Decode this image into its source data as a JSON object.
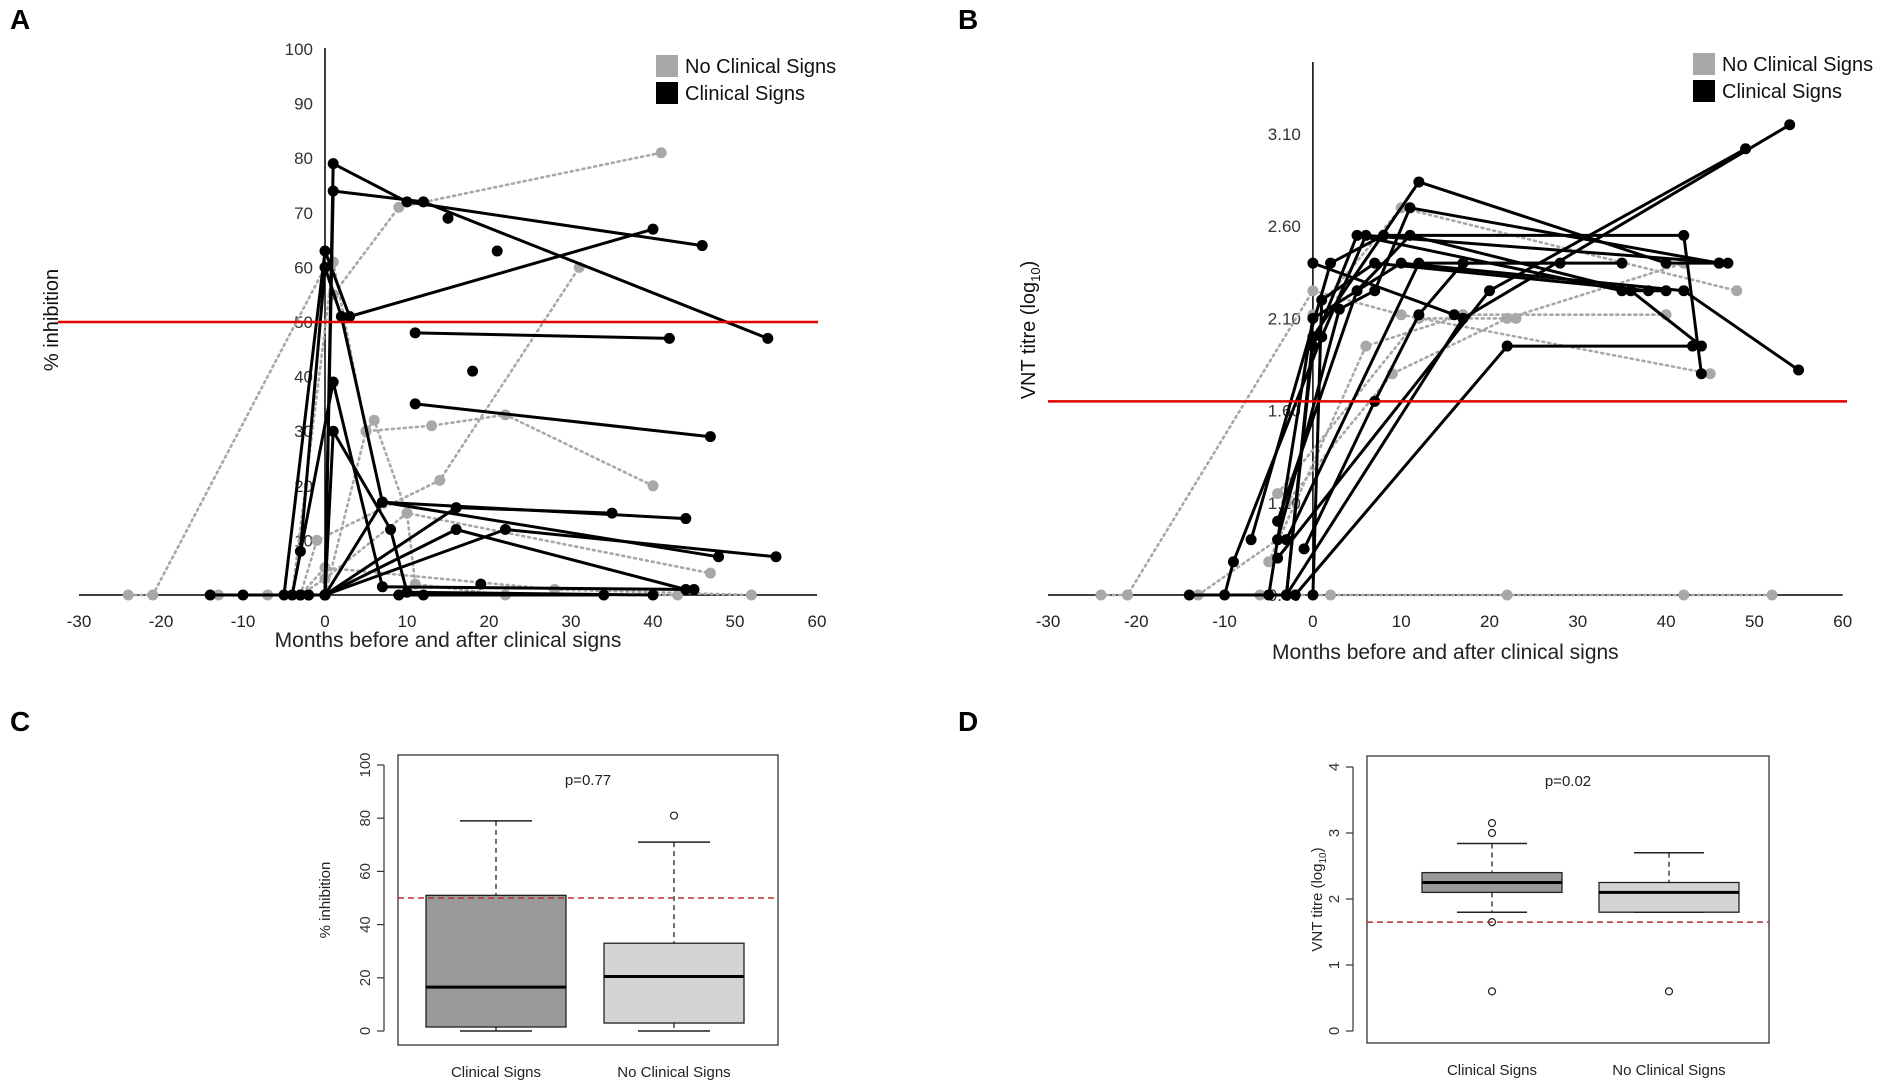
{
  "colors": {
    "clinical": "#000000",
    "no_clinical": "#a8a8a8",
    "threshold": "#e00000",
    "box_clinical": "#999999",
    "box_no_clinical": "#d4d4d4",
    "dashed_threshold": "#b03030"
  },
  "chart_data": [
    {
      "panel": "A",
      "type": "line",
      "title": "",
      "xlabel": "Months before and after clinical signs",
      "ylabel": "% inhibition",
      "xlim": [
        -30,
        60
      ],
      "ylim": [
        0,
        100
      ],
      "xticks": [
        -30,
        -20,
        -10,
        0,
        10,
        20,
        30,
        40,
        50,
        60
      ],
      "yticks": [
        10,
        20,
        30,
        40,
        50,
        60,
        70,
        80,
        90,
        100
      ],
      "threshold": 50,
      "legend": {
        "position": "top-right",
        "entries": [
          "No Clinical Signs",
          "Clinical Signs"
        ]
      },
      "series": [
        {
          "name": "Clinical Signs",
          "style": "solid",
          "points": [
            [
              -14,
              0
            ],
            [
              0,
              0
            ],
            [
              1,
              79
            ],
            [
              10,
              72
            ],
            [
              46,
              64
            ]
          ]
        },
        {
          "name": "Clinical Signs",
          "style": "solid",
          "points": [
            [
              -10,
              0
            ],
            [
              0,
              0
            ],
            [
              1,
              74
            ],
            [
              12,
              72
            ],
            [
              54,
              47
            ]
          ]
        },
        {
          "name": "Clinical Signs",
          "style": "solid",
          "points": [
            [
              -5,
              0
            ],
            [
              0,
              63
            ],
            [
              3,
              51
            ],
            [
              40,
              67
            ]
          ]
        },
        {
          "name": "Clinical Signs",
          "style": "solid",
          "points": [
            [
              -4,
              0
            ],
            [
              1,
              39
            ],
            [
              7,
              1.5
            ],
            [
              45,
              1
            ]
          ]
        },
        {
          "name": "Clinical Signs",
          "style": "solid",
          "points": [
            [
              -3,
              8
            ],
            [
              0,
              60
            ],
            [
              2,
              51
            ],
            [
              7,
              17
            ],
            [
              44,
              14
            ]
          ]
        },
        {
          "name": "Clinical Signs",
          "style": "solid",
          "points": [
            [
              -2,
              0
            ],
            [
              0,
              0
            ],
            [
              7,
              17
            ],
            [
              48,
              7
            ]
          ]
        },
        {
          "name": "Clinical Signs",
          "style": "solid",
          "points": [
            [
              -3,
              0
            ],
            [
              0,
              0
            ],
            [
              16,
              16
            ],
            [
              35,
              15
            ]
          ]
        },
        {
          "name": "Clinical Signs",
          "style": "solid",
          "points": [
            [
              -3,
              0
            ],
            [
              0,
              0
            ],
            [
              16,
              12
            ],
            [
              44,
              1
            ]
          ]
        },
        {
          "name": "Clinical Signs",
          "style": "solid",
          "points": [
            [
              -2,
              0
            ],
            [
              0,
              0
            ],
            [
              22,
              12
            ],
            [
              55,
              7
            ]
          ]
        },
        {
          "name": "Clinical Signs",
          "style": "solid",
          "points": [
            [
              0,
              0
            ],
            [
              1,
              30
            ],
            [
              8,
              12
            ],
            [
              10,
              0.5
            ],
            [
              40,
              0
            ]
          ]
        },
        {
          "name": "Clinical Signs",
          "style": "solid",
          "points": [
            [
              11,
              48
            ],
            [
              42,
              47
            ]
          ]
        },
        {
          "name": "Clinical Signs",
          "style": "solid",
          "points": [
            [
              11,
              35
            ],
            [
              47,
              29
            ]
          ]
        },
        {
          "name": "Clinical Signs",
          "style": "solid",
          "points": [
            [
              9,
              0
            ],
            [
              12,
              0
            ],
            [
              34,
              0
            ]
          ]
        },
        {
          "name": "Clinical Signs",
          "style": "solid",
          "points": [
            [
              15,
              69
            ]
          ]
        },
        {
          "name": "Clinical Signs",
          "style": "solid",
          "points": [
            [
              21,
              63
            ]
          ]
        },
        {
          "name": "Clinical Signs",
          "style": "solid",
          "points": [
            [
              18,
              41
            ]
          ]
        },
        {
          "name": "Clinical Signs",
          "style": "solid",
          "points": [
            [
              19,
              2
            ]
          ]
        },
        {
          "name": "No Clinical Signs",
          "style": "dotted",
          "points": [
            [
              -24,
              0
            ],
            [
              -21,
              0
            ],
            [
              0,
              60
            ],
            [
              1,
              55
            ],
            [
              9,
              71
            ],
            [
              41,
              81
            ]
          ]
        },
        {
          "name": "No Clinical Signs",
          "style": "dotted",
          "points": [
            [
              -13,
              0
            ],
            [
              0,
              0
            ],
            [
              5,
              30
            ],
            [
              6,
              32
            ],
            [
              10,
              15
            ],
            [
              11,
              2
            ],
            [
              22,
              0
            ],
            [
              43,
              0
            ]
          ]
        },
        {
          "name": "No Clinical Signs",
          "style": "dotted",
          "points": [
            [
              -4,
              0
            ],
            [
              1,
              61
            ],
            [
              5,
              30
            ],
            [
              13,
              31
            ],
            [
              22,
              33
            ],
            [
              40,
              20
            ]
          ]
        },
        {
          "name": "No Clinical Signs",
          "style": "dotted",
          "points": [
            [
              -3,
              0
            ],
            [
              0,
              3
            ],
            [
              10,
              15
            ],
            [
              47,
              4
            ]
          ]
        },
        {
          "name": "No Clinical Signs",
          "style": "dotted",
          "points": [
            [
              -3,
              0
            ],
            [
              -1,
              10
            ],
            [
              14,
              21
            ],
            [
              31,
              60
            ]
          ]
        },
        {
          "name": "No Clinical Signs",
          "style": "dotted",
          "points": [
            [
              -7,
              0
            ],
            [
              -3,
              0
            ],
            [
              0,
              5
            ],
            [
              28,
              1
            ],
            [
              52,
              0
            ]
          ]
        }
      ]
    },
    {
      "panel": "B",
      "type": "line",
      "title": "",
      "xlabel": "Months before and after clinical signs",
      "ylabel": "VNT titre (log10)",
      "ylabel_main": "VNT titre (log",
      "ylabel_sub": "10",
      "ylabel_end": ")",
      "xlim": [
        -30,
        60
      ],
      "ylim": [
        0.6,
        3.55
      ],
      "xticks": [
        -30,
        -20,
        -10,
        0,
        10,
        20,
        30,
        40,
        50,
        60
      ],
      "yticks": [
        0.6,
        1.1,
        1.6,
        2.1,
        2.6,
        3.1
      ],
      "ytick_labels": [
        "0.60",
        "1.10",
        "1.60",
        "2.10",
        "2.60",
        "3.10"
      ],
      "threshold": 1.65,
      "legend": {
        "position": "top-right",
        "entries": [
          "No Clinical Signs",
          "Clinical Signs"
        ]
      },
      "series": [
        {
          "name": "Clinical Signs",
          "style": "solid",
          "points": [
            [
              -14,
              0.6
            ],
            [
              -3,
              0.6
            ],
            [
              0,
              2.0
            ],
            [
              12,
              2.84
            ],
            [
              40,
              2.4
            ],
            [
              46,
              2.4
            ]
          ]
        },
        {
          "name": "Clinical Signs",
          "style": "solid",
          "points": [
            [
              -10,
              0.6
            ],
            [
              -9,
              0.78
            ],
            [
              1,
              2.0
            ],
            [
              6,
              2.55
            ],
            [
              47,
              2.4
            ]
          ]
        },
        {
          "name": "Clinical Signs",
          "style": "solid",
          "points": [
            [
              -7,
              0.9
            ],
            [
              2,
              2.4
            ],
            [
              8,
              2.55
            ],
            [
              42,
              2.55
            ],
            [
              44,
              1.8
            ]
          ]
        },
        {
          "name": "Clinical Signs",
          "style": "solid",
          "points": [
            [
              -5,
              0.6
            ],
            [
              0,
              2.1
            ],
            [
              10,
              2.4
            ],
            [
              42,
              2.25
            ],
            [
              55,
              1.82
            ]
          ]
        },
        {
          "name": "Clinical Signs",
          "style": "solid",
          "points": [
            [
              -4,
              0.9
            ],
            [
              3,
              2.15
            ],
            [
              7,
              2.25
            ],
            [
              11,
              2.7
            ],
            [
              46,
              2.4
            ]
          ]
        },
        {
          "name": "Clinical Signs",
          "style": "solid",
          "points": [
            [
              -4,
              1.0
            ],
            [
              5,
              2.25
            ],
            [
              11,
              2.55
            ],
            [
              36,
              2.25
            ],
            [
              44,
              1.95
            ]
          ]
        },
        {
          "name": "Clinical Signs",
          "style": "solid",
          "points": [
            [
              -3,
              0.6
            ],
            [
              0,
              1.95
            ],
            [
              5,
              2.55
            ],
            [
              35,
              2.25
            ],
            [
              40,
              2.25
            ]
          ]
        },
        {
          "name": "Clinical Signs",
          "style": "solid",
          "points": [
            [
              0,
              0.6
            ],
            [
              1,
              2.2
            ],
            [
              7,
              2.4
            ],
            [
              38,
              2.25
            ]
          ]
        },
        {
          "name": "Clinical Signs",
          "style": "solid",
          "points": [
            [
              -3,
              0.6
            ],
            [
              17,
              2.1
            ],
            [
              54,
              3.15
            ]
          ]
        },
        {
          "name": "Clinical Signs",
          "style": "solid",
          "points": [
            [
              -4,
              0.8
            ],
            [
              20,
              2.25
            ],
            [
              49,
              3.02
            ]
          ]
        },
        {
          "name": "Clinical Signs",
          "style": "solid",
          "points": [
            [
              -3,
              0.9
            ],
            [
              12,
              2.4
            ],
            [
              35,
              2.4
            ]
          ]
        },
        {
          "name": "Clinical Signs",
          "style": "solid",
          "points": [
            [
              -2,
              0.6
            ],
            [
              22,
              1.95
            ],
            [
              43,
              1.95
            ]
          ]
        },
        {
          "name": "Clinical Signs",
          "style": "solid",
          "points": [
            [
              -1,
              0.85
            ],
            [
              7,
              1.65
            ],
            [
              12,
              2.12
            ],
            [
              17,
              2.4
            ],
            [
              28,
              2.4
            ]
          ]
        },
        {
          "name": "Clinical Signs",
          "style": "solid",
          "points": [
            [
              0,
              2.4
            ],
            [
              16,
              2.12
            ]
          ]
        },
        {
          "name": "No Clinical Signs",
          "style": "dotted",
          "points": [
            [
              -24,
              0.6
            ],
            [
              -21,
              0.6
            ],
            [
              0,
              2.25
            ],
            [
              10,
              2.12
            ],
            [
              45,
              1.8
            ]
          ]
        },
        {
          "name": "No Clinical Signs",
          "style": "dotted",
          "points": [
            [
              -13,
              0.6
            ],
            [
              -4,
              0.9
            ],
            [
              0,
              2.12
            ],
            [
              10,
              2.7
            ],
            [
              48,
              2.25
            ]
          ]
        },
        {
          "name": "No Clinical Signs",
          "style": "dotted",
          "points": [
            [
              -5,
              0.78
            ],
            [
              6,
              1.95
            ],
            [
              17,
              2.12
            ],
            [
              40,
              2.12
            ]
          ]
        },
        {
          "name": "No Clinical Signs",
          "style": "dotted",
          "points": [
            [
              -3,
              1.1
            ],
            [
              9,
              1.8
            ],
            [
              22,
              2.1
            ],
            [
              42,
              2.4
            ]
          ]
        },
        {
          "name": "No Clinical Signs",
          "style": "dotted",
          "points": [
            [
              -4,
              1.15
            ],
            [
              12,
              2.1
            ],
            [
              23,
              2.1
            ]
          ]
        },
        {
          "name": "No Clinical Signs",
          "style": "dotted",
          "points": [
            [
              -6,
              0.6
            ],
            [
              2,
              0.6
            ],
            [
              22,
              0.6
            ],
            [
              42,
              0.6
            ],
            [
              52,
              0.6
            ]
          ]
        }
      ]
    },
    {
      "panel": "C",
      "type": "box",
      "ylabel": "% inhibition",
      "annotation": "p=0.77",
      "ylim": [
        0,
        100
      ],
      "yticks": [
        0,
        20,
        40,
        60,
        80,
        100
      ],
      "threshold": 50,
      "categories": [
        "Clinical Signs",
        "No Clinical Signs"
      ],
      "boxes": [
        {
          "name": "Clinical Signs",
          "min": 0,
          "q1": 1.5,
          "median": 16.5,
          "q3": 51,
          "max": 79,
          "outliers": []
        },
        {
          "name": "No Clinical Signs",
          "min": 0,
          "q1": 3,
          "median": 20.5,
          "q3": 33,
          "max": 71,
          "outliers": [
            81
          ]
        }
      ]
    },
    {
      "panel": "D",
      "type": "box",
      "ylabel": "VNT titre (log10)",
      "ylabel_main": "VNT titre (log",
      "ylabel_sub": "10",
      "ylabel_end": ")",
      "annotation": "p=0.02",
      "ylim": [
        0,
        4
      ],
      "yticks": [
        0,
        1,
        2,
        3,
        4
      ],
      "threshold": 1.65,
      "categories": [
        "Clinical Signs",
        "No Clinical Signs"
      ],
      "boxes": [
        {
          "name": "Clinical Signs",
          "min": 1.8,
          "q1": 2.1,
          "median": 2.25,
          "q3": 2.4,
          "max": 2.84,
          "outliers": [
            3.15,
            3.0,
            1.65,
            0.6
          ]
        },
        {
          "name": "No Clinical Signs",
          "min": 1.8,
          "q1": 1.8,
          "median": 2.1,
          "q3": 2.25,
          "max": 2.7,
          "outliers": [
            0.6
          ]
        }
      ]
    }
  ],
  "panels": {
    "a": "A",
    "b": "B",
    "c": "C",
    "d": "D"
  }
}
